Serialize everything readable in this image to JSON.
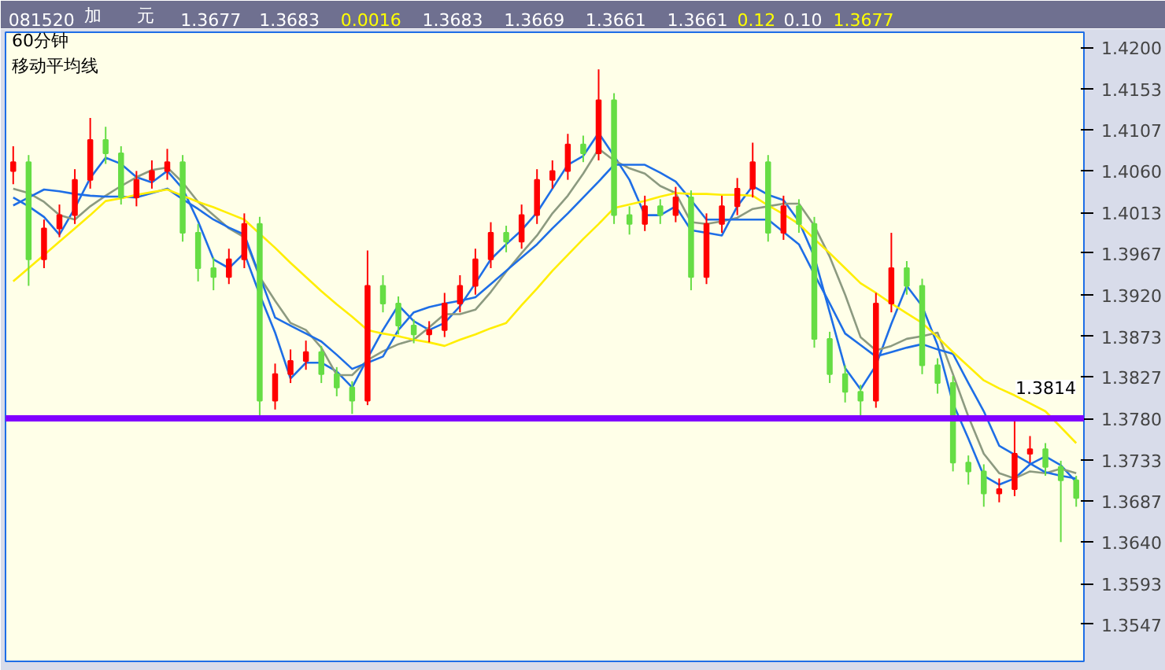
{
  "chart_data": {
    "type": "candlestick",
    "title": "60分钟",
    "subtitle": "移动平均线",
    "annotations": [
      "081520",
      "加",
      "元",
      "1.3677",
      "1.3683",
      "0.0016",
      "1.3683",
      "1.3669",
      "1.3661",
      "1.3661",
      "0.12",
      "0.10",
      "1.3677",
      "1.3814"
    ],
    "categories": [
      null,
      null,
      null,
      null,
      null,
      null,
      null,
      null,
      null,
      null,
      null,
      null,
      null,
      null,
      null,
      null,
      null,
      null,
      null,
      null,
      null,
      null,
      null,
      null,
      null,
      null,
      null,
      null,
      null,
      null,
      null,
      null,
      null,
      null,
      null,
      null,
      null,
      null,
      null,
      null,
      null,
      null,
      null,
      null,
      null,
      null,
      null,
      null,
      null,
      null,
      null,
      null,
      null,
      null,
      null,
      null,
      null,
      null,
      null,
      null,
      null,
      null,
      null,
      null,
      null,
      null,
      null,
      null,
      null,
      null
    ],
    "ohlc": [
      [
        1.406,
        1.4088,
        1.4045,
        1.407
      ],
      [
        1.407,
        1.4078,
        1.393,
        1.396
      ],
      [
        1.396,
        1.4005,
        1.395,
        1.3995
      ],
      [
        1.3995,
        1.4022,
        1.3985,
        1.401
      ],
      [
        1.401,
        1.4062,
        1.4,
        1.405
      ],
      [
        1.405,
        1.412,
        1.404,
        1.4095
      ],
      [
        1.4095,
        1.411,
        1.4068,
        1.408
      ],
      [
        1.408,
        1.4088,
        1.4022,
        1.403
      ],
      [
        1.403,
        1.406,
        1.402,
        1.405
      ],
      [
        1.405,
        1.4072,
        1.404,
        1.406
      ],
      [
        1.406,
        1.4085,
        1.405,
        1.407
      ],
      [
        1.407,
        1.4078,
        1.398,
        1.399
      ],
      [
        1.399,
        1.4,
        1.3935,
        1.395
      ],
      [
        1.395,
        1.3962,
        1.3925,
        1.394
      ],
      [
        1.394,
        1.3972,
        1.3932,
        1.396
      ],
      [
        1.396,
        1.4012,
        1.395,
        1.4
      ],
      [
        1.4,
        1.4008,
        1.378,
        1.38
      ],
      [
        1.38,
        1.3842,
        1.379,
        1.383
      ],
      [
        1.383,
        1.3858,
        1.382,
        1.3845
      ],
      [
        1.3845,
        1.3868,
        1.3835,
        1.3855
      ],
      [
        1.3855,
        1.3862,
        1.382,
        1.383
      ],
      [
        1.383,
        1.3838,
        1.3805,
        1.3815
      ],
      [
        1.3815,
        1.3822,
        1.3785,
        1.38
      ],
      [
        1.38,
        1.397,
        1.3795,
        1.393
      ],
      [
        1.393,
        1.3942,
        1.39,
        1.391
      ],
      [
        1.391,
        1.3918,
        1.3875,
        1.3885
      ],
      [
        1.3885,
        1.3892,
        1.3865,
        1.3875
      ],
      [
        1.3875,
        1.389,
        1.3866,
        1.388
      ],
      [
        1.388,
        1.3922,
        1.3872,
        1.391
      ],
      [
        1.391,
        1.3942,
        1.39,
        1.393
      ],
      [
        1.393,
        1.3972,
        1.392,
        1.396
      ],
      [
        1.396,
        1.4002,
        1.395,
        1.399
      ],
      [
        1.399,
        1.3998,
        1.3968,
        1.398
      ],
      [
        1.398,
        1.4022,
        1.3972,
        1.401
      ],
      [
        1.401,
        1.4062,
        1.4,
        1.405
      ],
      [
        1.405,
        1.4072,
        1.404,
        1.406
      ],
      [
        1.406,
        1.4102,
        1.405,
        1.409
      ],
      [
        1.409,
        1.41,
        1.407,
        1.408
      ],
      [
        1.408,
        1.4175,
        1.4072,
        1.414
      ],
      [
        1.414,
        1.4148,
        1.4,
        1.401
      ],
      [
        1.401,
        1.402,
        1.3988,
        1.4
      ],
      [
        1.4,
        1.4032,
        1.3992,
        1.402
      ],
      [
        1.402,
        1.4028,
        1.4,
        1.401
      ],
      [
        1.401,
        1.4042,
        1.4002,
        1.403
      ],
      [
        1.403,
        1.4038,
        1.3925,
        1.394
      ],
      [
        1.394,
        1.4012,
        1.3932,
        1.4
      ],
      [
        1.4,
        1.4032,
        1.399,
        1.402
      ],
      [
        1.402,
        1.4052,
        1.401,
        1.404
      ],
      [
        1.404,
        1.4092,
        1.403,
        1.407
      ],
      [
        1.407,
        1.4078,
        1.398,
        1.399
      ],
      [
        1.399,
        1.4032,
        1.3982,
        1.402
      ],
      [
        1.402,
        1.4028,
        1.399,
        1.4
      ],
      [
        1.4,
        1.4008,
        1.386,
        1.387
      ],
      [
        1.387,
        1.3878,
        1.382,
        1.383
      ],
      [
        1.383,
        1.384,
        1.3798,
        1.381
      ],
      [
        1.381,
        1.3818,
        1.3778,
        1.38
      ],
      [
        1.38,
        1.3922,
        1.3792,
        1.391
      ],
      [
        1.391,
        1.399,
        1.39,
        1.395
      ],
      [
        1.395,
        1.3958,
        1.392,
        1.393
      ],
      [
        1.393,
        1.3938,
        1.383,
        1.384
      ],
      [
        1.384,
        1.3848,
        1.3808,
        1.382
      ],
      [
        1.382,
        1.3828,
        1.372,
        1.373
      ],
      [
        1.373,
        1.3738,
        1.3705,
        1.372
      ],
      [
        1.372,
        1.3728,
        1.368,
        1.3695
      ],
      [
        1.3695,
        1.3712,
        1.3685,
        1.37
      ],
      [
        1.37,
        1.378,
        1.3692,
        1.374
      ],
      [
        1.374,
        1.376,
        1.373,
        1.3745
      ],
      [
        1.3745,
        1.3752,
        1.3715,
        1.3725
      ],
      [
        1.3725,
        1.3732,
        1.364,
        1.371
      ],
      [
        1.371,
        1.3715,
        1.368,
        1.369
      ]
    ],
    "colors": [
      "#ff0000",
      "#66dd44",
      "#ff0000",
      "#ff0000",
      "#ff0000",
      "#ff0000",
      "#66dd44",
      "#66dd44",
      "#ff0000",
      "#ff0000",
      "#ff0000",
      "#66dd44",
      "#66dd44",
      "#66dd44",
      "#ff0000",
      "#ff0000",
      "#66dd44",
      "#ff0000",
      "#ff0000",
      "#ff0000",
      "#66dd44",
      "#66dd44",
      "#66dd44",
      "#ff0000",
      "#66dd44",
      "#66dd44",
      "#66dd44",
      "#ff0000",
      "#ff0000",
      "#ff0000",
      "#ff0000",
      "#ff0000",
      "#66dd44",
      "#ff0000",
      "#ff0000",
      "#ff0000",
      "#ff0000",
      "#66dd44",
      "#ff0000",
      "#66dd44",
      "#66dd44",
      "#ff0000",
      "#66dd44",
      "#ff0000",
      "#66dd44",
      "#ff0000",
      "#ff0000",
      "#ff0000",
      "#ff0000",
      "#66dd44",
      "#ff0000",
      "#66dd44",
      "#66dd44",
      "#66dd44",
      "#66dd44",
      "#66dd44",
      "#ff0000",
      "#ff0000",
      "#66dd44",
      "#66dd44",
      "#66dd44",
      "#66dd44",
      "#66dd44",
      "#66dd44",
      "#ff0000",
      "#ff0000",
      "#ff0000",
      "#66dd44",
      "#66dd44",
      "#66dd44"
    ],
    "series": [
      {
        "type": "line",
        "color": "#1e6ee6",
        "values": [
          1.403,
          1.402,
          1.4008,
          1.3988,
          1.4018,
          1.4052,
          1.4075,
          1.4068,
          1.4053,
          1.4047,
          1.406,
          1.404,
          1.4003,
          1.396,
          1.395,
          1.3967,
          1.392,
          1.3877,
          1.3825,
          1.3843,
          1.3843,
          1.3833,
          1.3815,
          1.3848,
          1.388,
          1.3908,
          1.389,
          1.388,
          1.3888,
          1.3907,
          1.3933,
          1.396,
          1.3977,
          1.3993,
          1.4013,
          1.404,
          1.4067,
          1.4077,
          1.4103,
          1.4077,
          1.405,
          1.401,
          1.401,
          1.402,
          1.3993,
          1.399,
          1.3987,
          1.402,
          1.4043,
          1.4033,
          1.4027,
          1.4003,
          1.3963,
          1.39,
          1.3837,
          1.3813,
          1.384,
          1.3887,
          1.393,
          1.3907,
          1.3863,
          1.3797,
          1.3757,
          1.3715,
          1.3705,
          1.3712,
          1.3728,
          1.3737,
          1.3727,
          1.3708
        ]
      },
      {
        "type": "line",
        "color": "#8c9a80",
        "values": [
          1.404,
          1.4035,
          1.4025,
          1.401,
          1.4005,
          1.402,
          1.4032,
          1.4043,
          1.4053,
          1.4061,
          1.4064,
          1.4047,
          1.4025,
          1.401,
          1.3995,
          1.3985,
          1.394,
          1.3913,
          1.3888,
          1.388,
          1.386,
          1.3829,
          1.3829,
          1.3846,
          1.3856,
          1.3864,
          1.3869,
          1.3883,
          1.3898,
          1.3898,
          1.3903,
          1.3923,
          1.3946,
          1.3967,
          1.3987,
          1.4012,
          1.4032,
          1.4057,
          1.4085,
          1.4072,
          1.4063,
          1.4057,
          1.4043,
          1.4035,
          1.4002,
          1.4,
          1.4003,
          1.4007,
          1.4017,
          1.402,
          1.4023,
          1.4023,
          1.3998,
          1.3963,
          1.392,
          1.3872,
          1.3857,
          1.3862,
          1.387,
          1.3873,
          1.3877,
          1.383,
          1.3782,
          1.374,
          1.3718,
          1.3712,
          1.372,
          1.3718,
          1.3723,
          1.3718
        ]
      },
      {
        "type": "line",
        "color": "#1e6ee6",
        "values": [
          1.4021,
          1.403,
          1.4039,
          1.4037,
          1.4034,
          1.4032,
          1.4031,
          1.4031,
          1.403,
          1.4035,
          1.404,
          1.4028,
          1.4017,
          1.4005,
          1.3996,
          1.3988,
          1.3941,
          1.3894,
          1.3885,
          1.3876,
          1.3867,
          1.3852,
          1.3836,
          1.3843,
          1.385,
          1.388,
          1.39,
          1.3906,
          1.391,
          1.3913,
          1.3917,
          1.3932,
          1.3947,
          1.3962,
          1.3977,
          1.3995,
          1.4012,
          1.403,
          1.4048,
          1.4067,
          1.4067,
          1.4067,
          1.4058,
          1.4048,
          1.4027,
          1.4005,
          1.4005,
          1.4005,
          1.4005,
          1.4005,
          1.3991,
          1.3977,
          1.3943,
          1.391,
          1.3876,
          1.3863,
          1.385,
          1.3855,
          1.386,
          1.3864,
          1.3858,
          1.3853,
          1.382,
          1.3788,
          1.3749,
          1.3739,
          1.3729,
          1.3719,
          1.3715,
          1.3712
        ]
      },
      {
        "type": "line",
        "color": "#ffee00",
        "values": [
          1.3935,
          1.395,
          1.3965,
          1.398,
          1.3995,
          1.401,
          1.4026,
          1.4029,
          1.4033,
          1.4036,
          1.4039,
          1.4032,
          1.4025,
          1.4019,
          1.4012,
          1.4005,
          1.3989,
          1.3973,
          1.3956,
          1.394,
          1.3924,
          1.3909,
          1.3895,
          1.388,
          1.3876,
          1.3873,
          1.3869,
          1.3866,
          1.3862,
          1.3869,
          1.3875,
          1.3882,
          1.3888,
          1.3908,
          1.3927,
          1.3947,
          1.3965,
          1.3983,
          1.4,
          1.4018,
          1.4022,
          1.4026,
          1.4031,
          1.4035,
          1.4034,
          1.4034,
          1.4033,
          1.4033,
          1.4032,
          1.4021,
          1.4011,
          1.4,
          1.3983,
          1.3967,
          1.395,
          1.3933,
          1.3922,
          1.391,
          1.3899,
          1.3888,
          1.3872,
          1.3855,
          1.3839,
          1.3823,
          1.3814,
          1.3806,
          1.3797,
          1.3788,
          1.377,
          1.3752
        ]
      }
    ],
    "ref_lines": [
      {
        "axis": "y",
        "value": 1.378,
        "color": "#8000ff"
      }
    ],
    "ylim": [
      1.3505,
      1.4217
    ],
    "yticks": [
      {
        "value": 1.42,
        "label": "1.4200"
      },
      1.4153,
      1.4107,
      {
        "value": 1.406,
        "label": "1.4060"
      },
      1.4013,
      1.3967,
      {
        "value": 1.392,
        "label": "1.3920"
      },
      1.3873,
      1.3827,
      {
        "value": 1.378,
        "label": "1.3780"
      },
      1.3733,
      1.3687,
      {
        "value": 1.364,
        "label": "1.3640"
      },
      1.3593,
      1.3547
    ],
    "tick_labels": "y",
    "grid": false
  }
}
